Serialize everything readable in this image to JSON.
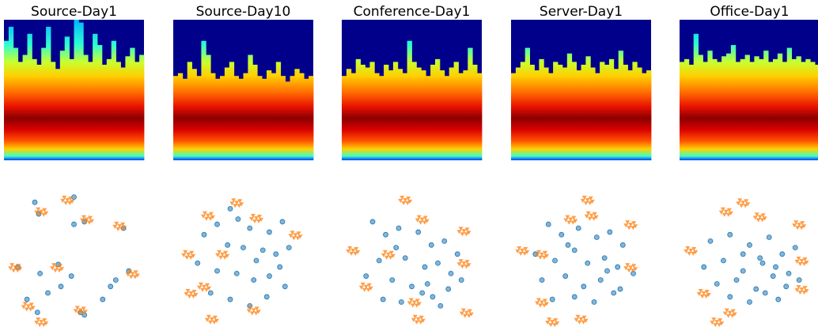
{
  "chart_data": [
    {
      "type": "heatmap",
      "title": "Source-Day1",
      "ylim": [
        0,
        1
      ],
      "heights": [
        0.85,
        0.95,
        0.8,
        0.7,
        0.75,
        0.9,
        0.72,
        0.68,
        0.8,
        0.95,
        0.7,
        0.65,
        0.78,
        0.88,
        0.72,
        1.0,
        0.98,
        0.75,
        0.7,
        0.9,
        0.82,
        0.68,
        0.72,
        0.85,
        0.7,
        0.66,
        0.74,
        0.8,
        0.7,
        0.75
      ]
    },
    {
      "type": "heatmap",
      "title": "Source-Day10",
      "ylim": [
        0,
        1
      ],
      "heights": [
        0.6,
        0.62,
        0.58,
        0.7,
        0.65,
        0.6,
        0.85,
        0.75,
        0.62,
        0.58,
        0.6,
        0.66,
        0.7,
        0.6,
        0.58,
        0.62,
        0.75,
        0.68,
        0.6,
        0.58,
        0.64,
        0.62,
        0.7,
        0.6,
        0.56,
        0.6,
        0.65,
        0.62,
        0.58,
        0.6
      ]
    },
    {
      "type": "heatmap",
      "title": "Conference-Day1",
      "ylim": [
        0,
        1
      ],
      "heights": [
        0.6,
        0.65,
        0.62,
        0.72,
        0.68,
        0.66,
        0.7,
        0.62,
        0.6,
        0.68,
        0.64,
        0.7,
        0.65,
        0.62,
        0.85,
        0.7,
        0.66,
        0.64,
        0.6,
        0.68,
        0.72,
        0.64,
        0.6,
        0.66,
        0.7,
        0.62,
        0.64,
        0.8,
        0.68,
        0.62
      ]
    },
    {
      "type": "heatmap",
      "title": "Server-Day1",
      "ylim": [
        0,
        1
      ],
      "heights": [
        0.62,
        0.66,
        0.7,
        0.8,
        0.68,
        0.64,
        0.72,
        0.66,
        0.62,
        0.7,
        0.68,
        0.66,
        0.76,
        0.7,
        0.64,
        0.68,
        0.74,
        0.66,
        0.62,
        0.7,
        0.68,
        0.72,
        0.65,
        0.78,
        0.68,
        0.64,
        0.7,
        0.66,
        0.62,
        0.64
      ]
    },
    {
      "type": "heatmap",
      "title": "Office-Day1",
      "ylim": [
        0,
        1
      ],
      "heights": [
        0.7,
        0.72,
        0.68,
        0.9,
        0.75,
        0.7,
        0.78,
        0.72,
        0.7,
        0.74,
        0.76,
        0.82,
        0.7,
        0.72,
        0.75,
        0.7,
        0.74,
        0.72,
        0.78,
        0.7,
        0.72,
        0.76,
        0.7,
        0.8,
        0.72,
        0.74,
        0.7,
        0.72,
        0.7,
        0.68
      ]
    },
    {
      "type": "scatter",
      "xlim": [
        0,
        100
      ],
      "ylim": [
        0,
        100
      ],
      "series": [
        {
          "color": "#1f77b4",
          "marker": "circle",
          "x": [
            20,
            50,
            23,
            58,
            50,
            88,
            7,
            38,
            92,
            48,
            78,
            82,
            14,
            30,
            55,
            58,
            22,
            24,
            40,
            72
          ],
          "y": [
            95,
            99,
            86,
            80,
            78,
            75,
            45,
            47,
            42,
            38,
            30,
            35,
            20,
            25,
            10,
            8,
            10,
            40,
            30,
            20
          ]
        },
        {
          "color": "#ff7f0e",
          "marker": "triangle",
          "x": [
            45,
            25,
            60,
            85,
            5,
            37,
            95,
            15,
            55,
            25
          ],
          "y": [
            97,
            88,
            82,
            77,
            45,
            45,
            40,
            15,
            12,
            3
          ]
        }
      ]
    },
    {
      "type": "scatter",
      "xlim": [
        0,
        100
      ],
      "ylim": [
        0,
        100
      ],
      "series": [
        {
          "color": "#1f77b4",
          "marker": "circle",
          "x": [
            40,
            46,
            30,
            55,
            70,
            80,
            20,
            38,
            50,
            65,
            75,
            85,
            15,
            30,
            45,
            58,
            70,
            82,
            25,
            40,
            55,
            68,
            78,
            60
          ],
          "y": [
            90,
            82,
            78,
            75,
            72,
            80,
            70,
            62,
            60,
            58,
            55,
            60,
            48,
            42,
            40,
            35,
            38,
            30,
            25,
            20,
            15,
            22,
            45,
            50
          ]
        },
        {
          "color": "#ff7f0e",
          "marker": "triangle",
          "x": [
            45,
            23,
            60,
            90,
            8,
            34,
            20,
            10,
            26,
            58
          ],
          "y": [
            95,
            85,
            83,
            70,
            55,
            55,
            30,
            25,
            5,
            12
          ]
        }
      ]
    },
    {
      "type": "scatter",
      "xlim": [
        0,
        100
      ],
      "ylim": [
        0,
        100
      ],
      "series": [
        {
          "color": "#1f77b4",
          "marker": "circle",
          "x": [
            20,
            30,
            40,
            55,
            65,
            75,
            85,
            25,
            45,
            60,
            70,
            80,
            15,
            35,
            50,
            62,
            78,
            88,
            28,
            42,
            58,
            72,
            38,
            66
          ],
          "y": [
            80,
            70,
            75,
            72,
            62,
            65,
            55,
            50,
            52,
            45,
            48,
            40,
            38,
            35,
            30,
            32,
            28,
            35,
            20,
            18,
            25,
            15,
            60,
            22
          ]
        },
        {
          "color": "#ff7f0e",
          "marker": "triangle",
          "x": [
            45,
            58,
            90,
            5,
            32,
            90,
            15,
            52,
            92,
            55
          ],
          "y": [
            97,
            82,
            73,
            58,
            55,
            48,
            30,
            18,
            10,
            5
          ]
        }
      ]
    },
    {
      "type": "scatter",
      "xlim": [
        0,
        100
      ],
      "ylim": [
        0,
        100
      ],
      "series": [
        {
          "color": "#1f77b4",
          "marker": "circle",
          "x": [
            25,
            35,
            48,
            62,
            72,
            82,
            15,
            30,
            45,
            55,
            68,
            78,
            90,
            20,
            38,
            52,
            65,
            80,
            28,
            45,
            60,
            75,
            40,
            70
          ],
          "y": [
            78,
            70,
            75,
            68,
            72,
            62,
            55,
            50,
            58,
            48,
            52,
            45,
            40,
            35,
            38,
            30,
            35,
            28,
            20,
            22,
            18,
            25,
            62,
            42
          ]
        },
        {
          "color": "#ff7f0e",
          "marker": "triangle",
          "x": [
            42,
            55,
            58,
            88,
            5,
            20,
            88,
            20,
            50,
            28
          ],
          "y": [
            82,
            97,
            85,
            78,
            58,
            55,
            45,
            18,
            5,
            3
          ]
        }
      ]
    },
    {
      "type": "scatter",
      "xlim": [
        0,
        100
      ],
      "ylim": [
        0,
        100
      ],
      "series": [
        {
          "color": "#1f77b4",
          "marker": "circle",
          "x": [
            20,
            35,
            50,
            65,
            75,
            85,
            15,
            30,
            45,
            58,
            70,
            80,
            25,
            40,
            55,
            68,
            78,
            88,
            35,
            50,
            62,
            72,
            45,
            60
          ],
          "y": [
            65,
            70,
            62,
            68,
            55,
            60,
            45,
            50,
            42,
            52,
            45,
            40,
            32,
            35,
            28,
            38,
            30,
            35,
            22,
            18,
            25,
            20,
            55,
            48
          ]
        },
        {
          "color": "#ff7f0e",
          "marker": "triangle",
          "x": [
            45,
            32,
            58,
            88,
            5,
            90,
            15,
            90,
            35,
            25
          ],
          "y": [
            95,
            88,
            84,
            78,
            58,
            50,
            25,
            28,
            10,
            3
          ]
        }
      ]
    }
  ]
}
